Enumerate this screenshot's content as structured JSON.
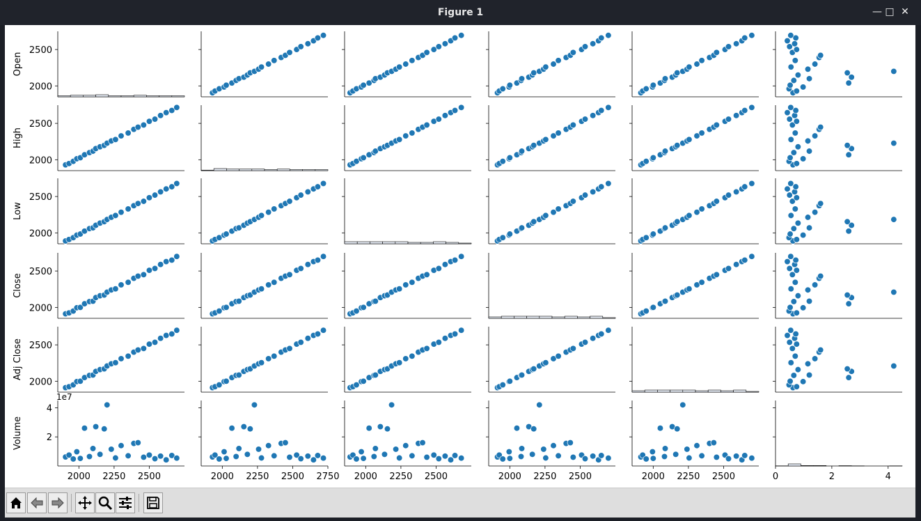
{
  "window": {
    "title": "Figure 1"
  },
  "toolbar": {
    "buttons": [
      {
        "name": "home-button",
        "icon": "home-icon"
      },
      {
        "name": "back-button",
        "icon": "arrow-left-icon"
      },
      {
        "name": "forward-button",
        "icon": "arrow-right-icon"
      },
      {
        "name": "pan-button",
        "icon": "move-icon"
      },
      {
        "name": "zoom-button",
        "icon": "magnifier-icon"
      },
      {
        "name": "configure-subplots-button",
        "icon": "sliders-icon"
      },
      {
        "name": "save-button",
        "icon": "floppy-icon"
      }
    ]
  },
  "chart_data": {
    "type": "scatter",
    "kind": "pairplot",
    "variables": [
      "Open",
      "High",
      "Low",
      "Close",
      "Adj Close",
      "Volume"
    ],
    "diagonal": "histogram",
    "price_axis": {
      "range": [
        1850,
        2750
      ],
      "ticks": [
        "2000",
        "2500"
      ],
      "bottom_ticks": [
        "2000",
        "2250",
        "2500"
      ],
      "bottom_ticks_extended": [
        "2000",
        "2250",
        "2500",
        "2750"
      ]
    },
    "volume_axis": {
      "range": [
        0,
        45000000
      ],
      "ticks": [
        "2",
        "4"
      ],
      "bottom_ticks": [
        "0",
        "2",
        "4"
      ],
      "offset_label": "1e7"
    },
    "marker_color": "#1f77b4",
    "rows": [
      {
        "date_index": 0,
        "Open": 1905,
        "Close": 1912,
        "Volume": 6200000
      },
      {
        "date_index": 1,
        "Open": 1930,
        "Close": 1925,
        "Volume": 7500000
      },
      {
        "date_index": 2,
        "Open": 1960,
        "Close": 1950,
        "Volume": 4800000
      },
      {
        "date_index": 3,
        "Open": 1985,
        "Close": 1995,
        "Volume": 9800000
      },
      {
        "date_index": 4,
        "Open": 2010,
        "Close": 2000,
        "Volume": 5200000
      },
      {
        "date_index": 5,
        "Open": 2040,
        "Close": 2050,
        "Volume": 26000000
      },
      {
        "date_index": 6,
        "Open": 2075,
        "Close": 2080,
        "Volume": 6500000
      },
      {
        "date_index": 7,
        "Open": 2100,
        "Close": 2085,
        "Volume": 12000000
      },
      {
        "date_index": 8,
        "Open": 2120,
        "Close": 2135,
        "Volume": 27000000
      },
      {
        "date_index": 9,
        "Open": 2150,
        "Close": 2160,
        "Volume": 8000000
      },
      {
        "date_index": 10,
        "Open": 2180,
        "Close": 2170,
        "Volume": 25500000
      },
      {
        "date_index": 11,
        "Open": 2200,
        "Close": 2210,
        "Volume": 42000000
      },
      {
        "date_index": 12,
        "Open": 2230,
        "Close": 2240,
        "Volume": 11500000
      },
      {
        "date_index": 13,
        "Open": 2260,
        "Close": 2255,
        "Volume": 5500000
      },
      {
        "date_index": 14,
        "Open": 2300,
        "Close": 2310,
        "Volume": 14000000
      },
      {
        "date_index": 15,
        "Open": 2350,
        "Close": 2345,
        "Volume": 7000000
      },
      {
        "date_index": 16,
        "Open": 2390,
        "Close": 2400,
        "Volume": 15500000
      },
      {
        "date_index": 17,
        "Open": 2420,
        "Close": 2430,
        "Volume": 16000000
      },
      {
        "date_index": 18,
        "Open": 2460,
        "Close": 2450,
        "Volume": 6000000
      },
      {
        "date_index": 19,
        "Open": 2500,
        "Close": 2510,
        "Volume": 7500000
      },
      {
        "date_index": 20,
        "Open": 2540,
        "Close": 2535,
        "Volume": 5000000
      },
      {
        "date_index": 21,
        "Open": 2580,
        "Close": 2590,
        "Volume": 6800000
      },
      {
        "date_index": 22,
        "Open": 2620,
        "Close": 2630,
        "Volume": 4200000
      },
      {
        "date_index": 23,
        "Open": 2660,
        "Close": 2650,
        "Volume": 7200000
      },
      {
        "date_index": 24,
        "Open": 2695,
        "Close": 2700,
        "Volume": 5400000
      }
    ]
  }
}
